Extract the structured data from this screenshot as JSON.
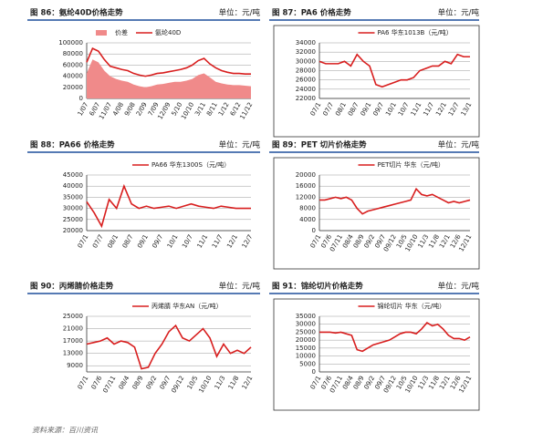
{
  "source": "资料来源：百川资讯",
  "chart_data": [
    {
      "type": "line",
      "title": "图 86：氨纶40D价格走势",
      "unit": "单位：元/吨",
      "frame": false,
      "categories": [
        "1/07",
        null,
        "6/07",
        null,
        "11/07",
        null,
        "4/08",
        null,
        "9/08",
        null,
        "2/09",
        null,
        "7/09",
        null,
        "12/09",
        null,
        "5/10",
        null,
        "10/10",
        null,
        "3/11",
        null,
        "8/11",
        null,
        "1/12",
        null,
        "6/12",
        null,
        "11/12"
      ],
      "series": [
        {
          "name": "价差",
          "color": "#f08a8a",
          "style": "area",
          "values": [
            45000,
            70000,
            65000,
            50000,
            40000,
            35000,
            32000,
            30000,
            25000,
            22000,
            20000,
            22000,
            25000,
            26000,
            28000,
            30000,
            30000,
            32000,
            35000,
            42000,
            45000,
            38000,
            30000,
            27000,
            25000,
            24000,
            24000,
            23000,
            22000
          ]
        },
        {
          "name": "氨纶40D",
          "color": "#d81e1e",
          "style": "line",
          "values": [
            65000,
            90000,
            85000,
            70000,
            58000,
            55000,
            52000,
            50000,
            45000,
            42000,
            40000,
            42000,
            45000,
            46000,
            48000,
            50000,
            52000,
            55000,
            60000,
            68000,
            72000,
            62000,
            55000,
            50000,
            47000,
            45000,
            45000,
            44000,
            44000
          ]
        }
      ],
      "ylim": [
        0,
        100000
      ],
      "yticks": [
        0,
        20000,
        40000,
        60000,
        80000,
        100000
      ],
      "grid": true
    },
    {
      "type": "line",
      "title": "图 87：PA6 价格走势",
      "unit": "单位：元/吨",
      "frame": true,
      "categories": [
        "07/1",
        null,
        "07/7",
        null,
        "08/1",
        null,
        "08/7",
        null,
        "09/1",
        null,
        "09/7",
        null,
        "10/1",
        null,
        "10/7",
        null,
        "11/1",
        null,
        "11/7",
        null,
        "12/1",
        null,
        "12/7",
        null,
        "13/1"
      ],
      "series": [
        {
          "name": "PA6 华东1013B（元/吨）",
          "color": "#d81e1e",
          "style": "line",
          "values": [
            30000,
            29500,
            29500,
            29500,
            30000,
            29000,
            31500,
            30000,
            29000,
            25000,
            24500,
            25000,
            25500,
            26000,
            26000,
            26500,
            28000,
            28500,
            29000,
            29000,
            30000,
            29500,
            31500,
            31000,
            31000
          ]
        }
      ],
      "ylim": [
        22000,
        34000
      ],
      "yticks": [
        22000,
        24000,
        26000,
        28000,
        30000,
        32000,
        34000
      ],
      "grid": true
    },
    {
      "type": "line",
      "title": "图 88：PA66 价格走势",
      "unit": "单位：元/吨",
      "frame": false,
      "categories": [
        "07/1",
        null,
        "07/7",
        null,
        "08/1",
        null,
        "08/7",
        null,
        "09/1",
        null,
        "09/7",
        null,
        "10/1",
        null,
        "10/7",
        null,
        "11/1",
        null,
        "11/7",
        null,
        "12/1",
        null,
        "12/7"
      ],
      "series": [
        {
          "name": "PA66 华东1300S（元/吨）",
          "color": "#d81e1e",
          "style": "line",
          "values": [
            33000,
            28000,
            22000,
            34000,
            30000,
            40000,
            32000,
            30000,
            31000,
            30000,
            30500,
            31000,
            30000,
            31000,
            32000,
            31000,
            30500,
            30000,
            31000,
            30500,
            30000,
            30000,
            30000
          ]
        }
      ],
      "ylim": [
        20000,
        45000
      ],
      "yticks": [
        20000,
        25000,
        30000,
        35000,
        40000,
        45000
      ],
      "grid": true
    },
    {
      "type": "line",
      "title": "图 89：PET 切片价格走势",
      "unit": "单位：元/吨",
      "frame": true,
      "categories": [
        "07/1",
        null,
        "07/6",
        null,
        "07/11",
        null,
        "08/4",
        null,
        "08/9",
        null,
        "09/2",
        null,
        "09/7",
        null,
        "09/12",
        null,
        "10/5",
        null,
        "10/10",
        null,
        "11/3",
        null,
        "11/8",
        null,
        "12/1",
        null,
        "12/6",
        null,
        "12/11"
      ],
      "series": [
        {
          "name": "PET切片 华东（元/吨）",
          "color": "#d81e1e",
          "style": "line",
          "values": [
            11000,
            11000,
            11500,
            12000,
            11500,
            12000,
            11000,
            8000,
            6000,
            7000,
            7500,
            8000,
            8500,
            9000,
            9500,
            10000,
            10500,
            11000,
            15000,
            13000,
            12500,
            13000,
            12000,
            11000,
            10000,
            10500,
            10000,
            10500,
            11000
          ]
        }
      ],
      "ylim": [
        0,
        20000
      ],
      "yticks": [
        0,
        4000,
        8000,
        12000,
        16000,
        20000
      ],
      "grid": true
    },
    {
      "type": "line",
      "title": "图 90：丙烯腈价格走势",
      "unit": "单位：元/吨",
      "frame": false,
      "categories": [
        "07/1",
        null,
        "07/6",
        null,
        "07/11",
        null,
        "08/4",
        null,
        "08/9",
        null,
        "09/2",
        null,
        "09/7",
        null,
        "09/12",
        null,
        "10/5",
        null,
        "10/10",
        null,
        "11/3",
        null,
        "11/8",
        null,
        "12/1"
      ],
      "series": [
        {
          "name": "丙烯腈 华东AN（元/吨）",
          "color": "#d81e1e",
          "style": "line",
          "values": [
            16000,
            16500,
            17000,
            18000,
            16000,
            17000,
            16500,
            15000,
            8000,
            8500,
            13000,
            16000,
            20000,
            22000,
            18000,
            17000,
            19000,
            21000,
            18000,
            12000,
            16000,
            13000,
            14000,
            13000,
            15000
          ]
        }
      ],
      "ylim": [
        7000,
        25000
      ],
      "yticks": [
        9000,
        13000,
        17000,
        21000,
        25000
      ],
      "grid": true
    },
    {
      "type": "line",
      "title": "图 91：锦纶切片价格走势",
      "unit": "单位：元/吨",
      "frame": true,
      "categories": [
        "07/1",
        null,
        "07/6",
        null,
        "07/11",
        null,
        "08/4",
        null,
        "08/9",
        null,
        "09/2",
        null,
        "09/7",
        null,
        "09/12",
        null,
        "10/5",
        null,
        "10/10",
        null,
        "11/3",
        null,
        "11/8",
        null,
        "12/1",
        null,
        "12/6",
        null,
        "12/11"
      ],
      "series": [
        {
          "name": "锦纶切片 华东（元/吨）",
          "color": "#d81e1e",
          "style": "line",
          "values": [
            25000,
            25000,
            25000,
            24500,
            25000,
            24000,
            23000,
            14000,
            13000,
            15000,
            17000,
            18000,
            19000,
            20000,
            22000,
            24000,
            25000,
            25000,
            24000,
            27000,
            31000,
            29000,
            30000,
            27000,
            23000,
            21000,
            21000,
            20000,
            22000
          ]
        }
      ],
      "ylim": [
        0,
        35000
      ],
      "yticks": [
        0,
        5000,
        10000,
        15000,
        20000,
        25000,
        30000,
        35000
      ],
      "grid": true
    }
  ]
}
